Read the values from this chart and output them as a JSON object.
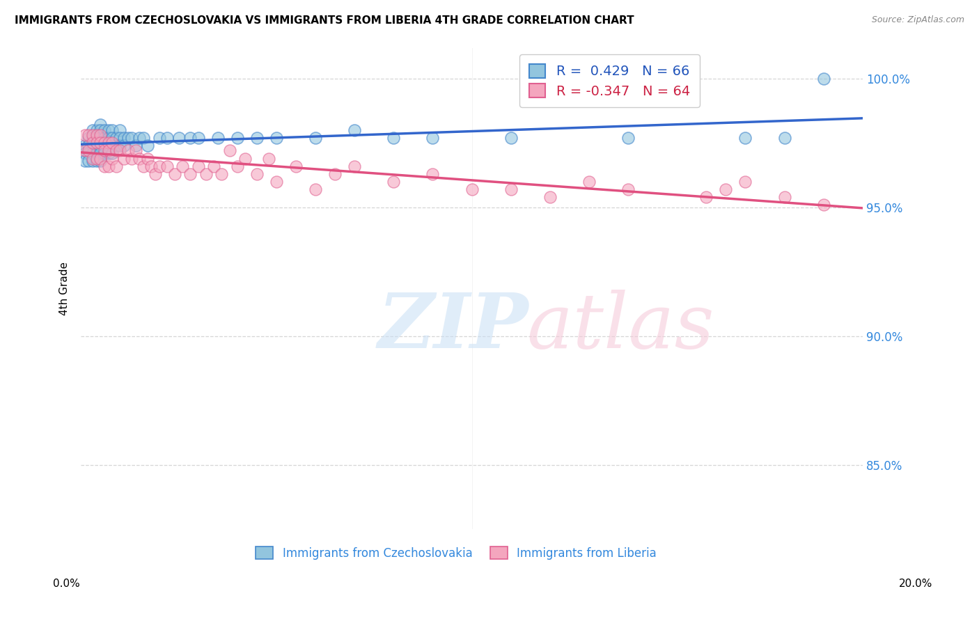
{
  "title": "IMMIGRANTS FROM CZECHOSLOVAKIA VS IMMIGRANTS FROM LIBERIA 4TH GRADE CORRELATION CHART",
  "source": "Source: ZipAtlas.com",
  "ylabel": "4th Grade",
  "y_tick_labels": [
    "85.0%",
    "90.0%",
    "95.0%",
    "100.0%"
  ],
  "y_ticks": [
    0.85,
    0.9,
    0.95,
    1.0
  ],
  "x_min": 0.0,
  "x_max": 0.2,
  "y_min": 0.825,
  "y_max": 1.012,
  "color_czech": "#92c5de",
  "color_liberia": "#f4a6be",
  "edge_czech": "#4488cc",
  "edge_liberia": "#e06090",
  "trendline_czech_color": "#3366cc",
  "trendline_liberia_color": "#e05080",
  "czech_x": [
    0.001,
    0.001,
    0.001,
    0.002,
    0.002,
    0.002,
    0.002,
    0.003,
    0.003,
    0.003,
    0.003,
    0.003,
    0.004,
    0.004,
    0.004,
    0.004,
    0.004,
    0.005,
    0.005,
    0.005,
    0.005,
    0.005,
    0.005,
    0.006,
    0.006,
    0.006,
    0.006,
    0.007,
    0.007,
    0.007,
    0.007,
    0.008,
    0.008,
    0.008,
    0.008,
    0.009,
    0.009,
    0.01,
    0.01,
    0.01,
    0.011,
    0.011,
    0.012,
    0.013,
    0.014,
    0.015,
    0.016,
    0.017,
    0.02,
    0.022,
    0.025,
    0.028,
    0.03,
    0.035,
    0.04,
    0.045,
    0.05,
    0.06,
    0.07,
    0.08,
    0.09,
    0.11,
    0.14,
    0.17,
    0.18,
    0.19
  ],
  "czech_y": [
    0.974,
    0.971,
    0.968,
    0.977,
    0.974,
    0.971,
    0.968,
    0.98,
    0.977,
    0.974,
    0.971,
    0.968,
    0.98,
    0.977,
    0.974,
    0.971,
    0.968,
    0.982,
    0.98,
    0.977,
    0.974,
    0.971,
    0.968,
    0.98,
    0.977,
    0.974,
    0.971,
    0.98,
    0.977,
    0.974,
    0.971,
    0.98,
    0.977,
    0.974,
    0.971,
    0.977,
    0.974,
    0.98,
    0.977,
    0.974,
    0.977,
    0.974,
    0.977,
    0.977,
    0.974,
    0.977,
    0.977,
    0.974,
    0.977,
    0.977,
    0.977,
    0.977,
    0.977,
    0.977,
    0.977,
    0.977,
    0.977,
    0.977,
    0.98,
    0.977,
    0.977,
    0.977,
    0.977,
    0.977,
    0.977,
    1.0
  ],
  "liberia_x": [
    0.001,
    0.001,
    0.002,
    0.002,
    0.003,
    0.003,
    0.003,
    0.004,
    0.004,
    0.004,
    0.005,
    0.005,
    0.005,
    0.006,
    0.006,
    0.006,
    0.007,
    0.007,
    0.007,
    0.008,
    0.008,
    0.009,
    0.009,
    0.01,
    0.011,
    0.012,
    0.013,
    0.014,
    0.015,
    0.016,
    0.017,
    0.018,
    0.019,
    0.02,
    0.022,
    0.024,
    0.026,
    0.028,
    0.03,
    0.032,
    0.034,
    0.036,
    0.038,
    0.04,
    0.042,
    0.045,
    0.048,
    0.05,
    0.055,
    0.06,
    0.065,
    0.07,
    0.08,
    0.09,
    0.1,
    0.11,
    0.12,
    0.13,
    0.14,
    0.16,
    0.165,
    0.17,
    0.18,
    0.19
  ],
  "liberia_y": [
    0.978,
    0.972,
    0.978,
    0.972,
    0.978,
    0.975,
    0.969,
    0.978,
    0.975,
    0.969,
    0.978,
    0.975,
    0.969,
    0.975,
    0.972,
    0.966,
    0.975,
    0.972,
    0.966,
    0.975,
    0.969,
    0.972,
    0.966,
    0.972,
    0.969,
    0.972,
    0.969,
    0.972,
    0.969,
    0.966,
    0.969,
    0.966,
    0.963,
    0.966,
    0.966,
    0.963,
    0.966,
    0.963,
    0.966,
    0.963,
    0.966,
    0.963,
    0.972,
    0.966,
    0.969,
    0.963,
    0.969,
    0.96,
    0.966,
    0.957,
    0.963,
    0.966,
    0.96,
    0.963,
    0.957,
    0.957,
    0.954,
    0.96,
    0.957,
    0.954,
    0.957,
    0.96,
    0.954,
    0.951
  ]
}
